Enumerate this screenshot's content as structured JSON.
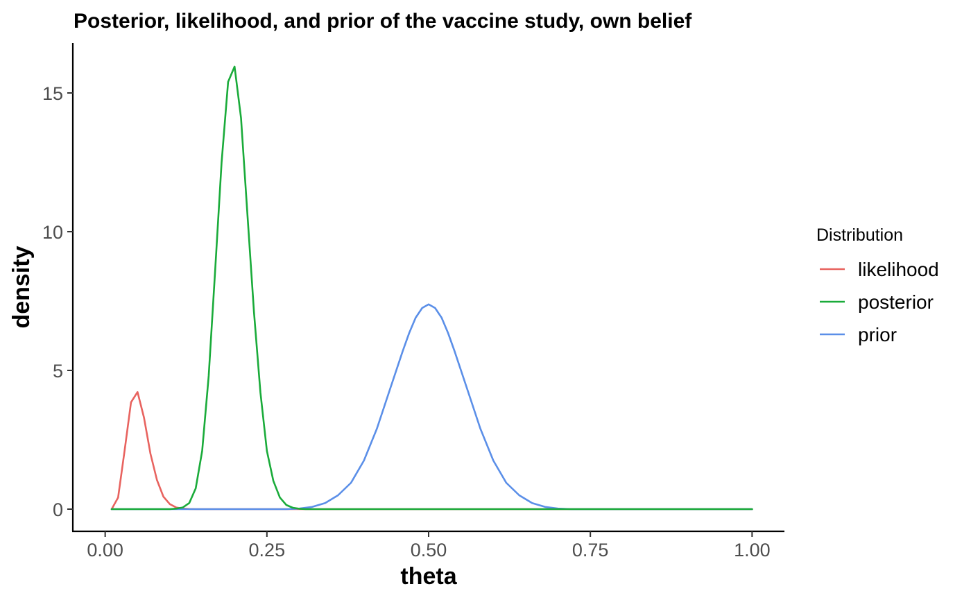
{
  "chart_data": {
    "type": "line",
    "title": "Posterior, likelihood, and prior of the vaccine study, own belief",
    "xlabel": "theta",
    "ylabel": "density",
    "xlim": [
      -0.05,
      1.05
    ],
    "ylim": [
      -0.8,
      16.8
    ],
    "xticks": [
      0,
      0.25,
      0.5,
      0.75,
      1
    ],
    "xtick_labels": [
      "0.00",
      "0.25",
      "0.50",
      "0.75",
      "1.00"
    ],
    "yticks": [
      0,
      5,
      10,
      15
    ],
    "ytick_labels": [
      "0",
      "5",
      "10",
      "15"
    ],
    "grid": false,
    "legend": {
      "title": "Distribution",
      "position": "right"
    },
    "series": [
      {
        "name": "likelihood",
        "color": "#e8635f",
        "x": [
          0.01,
          0.02,
          0.03,
          0.04,
          0.05,
          0.06,
          0.07,
          0.08,
          0.09,
          0.1,
          0.11,
          0.12,
          0.13,
          0.14,
          0.15,
          0.2,
          0.3,
          0.4,
          0.5,
          0.6,
          0.7,
          0.8,
          0.9,
          1.0
        ],
        "y": [
          0.0,
          0.42,
          2.1,
          3.85,
          4.22,
          3.3,
          2.0,
          1.05,
          0.45,
          0.18,
          0.06,
          0.02,
          0.005,
          0.001,
          0.0,
          0.0,
          0.0,
          0.0,
          0.0,
          0.0,
          0.0,
          0.0,
          0.0,
          0.0
        ]
      },
      {
        "name": "posterior",
        "color": "#1aab3a",
        "x": [
          0.01,
          0.05,
          0.1,
          0.11,
          0.12,
          0.13,
          0.14,
          0.15,
          0.16,
          0.17,
          0.18,
          0.19,
          0.2,
          0.21,
          0.22,
          0.23,
          0.24,
          0.25,
          0.26,
          0.27,
          0.28,
          0.29,
          0.3,
          0.31,
          0.4,
          0.5,
          0.6,
          0.7,
          0.8,
          0.9,
          1.0
        ],
        "y": [
          0.0,
          0.0,
          0.0,
          0.02,
          0.06,
          0.22,
          0.75,
          2.1,
          4.8,
          8.6,
          12.5,
          15.4,
          15.95,
          14.1,
          10.6,
          7.1,
          4.2,
          2.1,
          1.02,
          0.42,
          0.15,
          0.05,
          0.015,
          0.0,
          0.0,
          0.0,
          0.0,
          0.0,
          0.0,
          0.0,
          0.0
        ]
      },
      {
        "name": "prior",
        "color": "#5b8fe8",
        "x": [
          0.01,
          0.1,
          0.2,
          0.28,
          0.3,
          0.32,
          0.34,
          0.36,
          0.38,
          0.4,
          0.42,
          0.44,
          0.46,
          0.47,
          0.48,
          0.49,
          0.5,
          0.51,
          0.52,
          0.53,
          0.54,
          0.56,
          0.58,
          0.6,
          0.62,
          0.64,
          0.66,
          0.68,
          0.7,
          0.72,
          0.8,
          0.9,
          1.0
        ],
        "y": [
          0.0,
          0.0,
          0.0,
          0.0,
          0.02,
          0.08,
          0.22,
          0.5,
          0.95,
          1.75,
          2.9,
          4.3,
          5.7,
          6.35,
          6.9,
          7.25,
          7.38,
          7.25,
          6.9,
          6.35,
          5.7,
          4.3,
          2.9,
          1.75,
          0.95,
          0.5,
          0.22,
          0.08,
          0.02,
          0.0,
          0.0,
          0.0,
          0.0
        ]
      }
    ]
  }
}
